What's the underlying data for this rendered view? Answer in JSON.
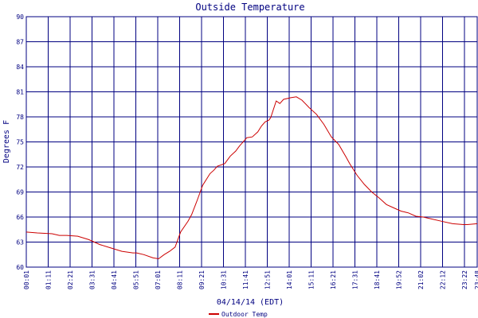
{
  "chart_data": {
    "type": "line",
    "title": "Outside Temperature",
    "xlabel": "04/14/14 (EDT)",
    "ylabel": "Degrees F",
    "ylim": [
      60,
      90
    ],
    "yticks": [
      "60",
      "63",
      "66",
      "69",
      "72",
      "75",
      "78",
      "81",
      "84",
      "87",
      "90"
    ],
    "xticks": [
      "00:01",
      "01:11",
      "02:21",
      "03:31",
      "04:41",
      "05:51",
      "07:01",
      "08:11",
      "09:21",
      "10:31",
      "11:41",
      "12:51",
      "14:01",
      "15:11",
      "16:21",
      "17:31",
      "18:41",
      "19:52",
      "21:02",
      "22:12",
      "23:22",
      "23:48"
    ],
    "grid": true,
    "legend_position": "bottom",
    "series": [
      {
        "name": "Outdoor Temp",
        "color": "#cc0000",
        "x": [
          0,
          30,
          70,
          90,
          110,
          140,
          170,
          200,
          230,
          260,
          290,
          300,
          320,
          345,
          360,
          375,
          390,
          405,
          420,
          440,
          450,
          465,
          480,
          500,
          510,
          520,
          540,
          555,
          570,
          580,
          600,
          615,
          630,
          640,
          650,
          660,
          665,
          680,
          690,
          700,
          720,
          735,
          750,
          770,
          790,
          810,
          830,
          850,
          870,
          880,
          900,
          920,
          940,
          960,
          980,
          1000,
          1020,
          1040,
          1060,
          1080,
          1100,
          1130,
          1160,
          1190,
          1200,
          1227
        ],
        "y": [
          64.2,
          64.1,
          64.0,
          63.8,
          63.8,
          63.7,
          63.3,
          62.7,
          62.3,
          61.9,
          61.7,
          61.7,
          61.5,
          61.1,
          61.0,
          61.5,
          61.9,
          62.4,
          64.2,
          65.5,
          66.3,
          68.0,
          69.8,
          71.2,
          71.6,
          72.1,
          72.4,
          73.3,
          73.9,
          74.5,
          75.5,
          75.6,
          76.2,
          76.9,
          77.4,
          77.6,
          77.9,
          79.9,
          79.6,
          80.1,
          80.3,
          80.4,
          80.0,
          79.1,
          78.3,
          77.1,
          75.6,
          74.7,
          73.2,
          72.4,
          71.0,
          69.9,
          69.0,
          68.3,
          67.5,
          67.1,
          66.7,
          66.5,
          66.1,
          66.0,
          65.8,
          65.5,
          65.2,
          65.1,
          65.1,
          65.2
        ]
      }
    ]
  }
}
